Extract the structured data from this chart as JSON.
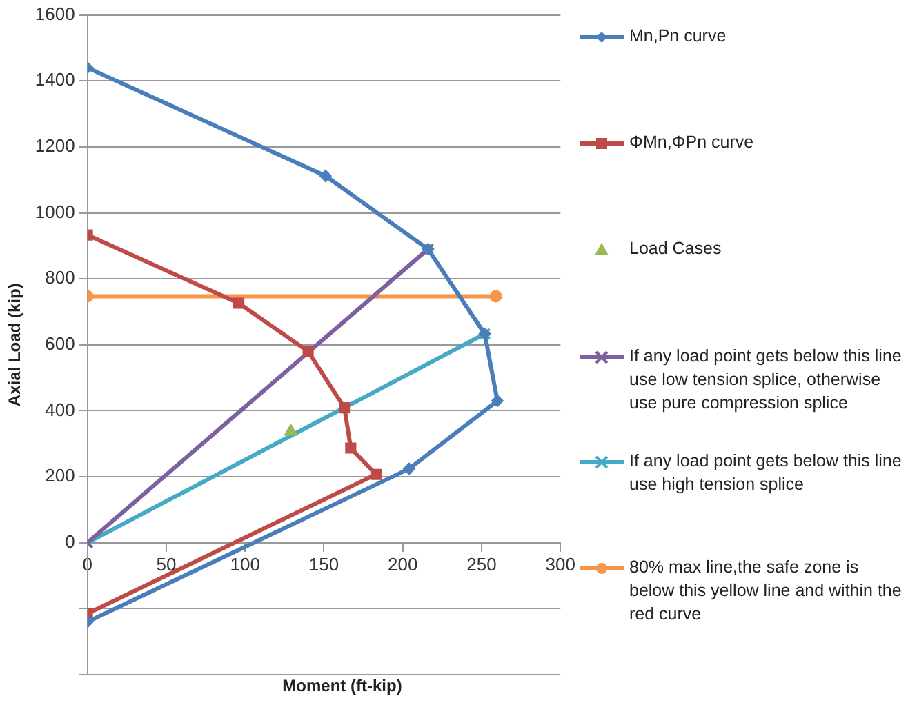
{
  "chart_data": {
    "type": "line",
    "xlabel": "Moment (ft-kip)",
    "ylabel": "Axial Load (kip)",
    "xlim": [
      0,
      300
    ],
    "xticks": [
      0,
      50,
      100,
      150,
      200,
      250,
      300
    ],
    "ylim": [
      -400,
      1600
    ],
    "yticks": [
      {
        "value": -400,
        "label": null
      },
      {
        "value": -200,
        "label": null
      },
      0,
      200,
      400,
      600,
      800,
      1000,
      1200,
      1400,
      1600
    ],
    "grid": "y",
    "legend": "right",
    "series": [
      {
        "name": "Mn,Pn curve",
        "marker": "diamond",
        "color": "#4a7ebb",
        "x": [
          0,
          151,
          216,
          252,
          260,
          204,
          0
        ],
        "values": [
          1440,
          1112,
          890,
          633,
          430,
          224,
          -240
        ]
      },
      {
        "name": "ΦMn,ΦPn curve",
        "marker": "square",
        "color": "#be4b48",
        "x": [
          0,
          96,
          140,
          163,
          167,
          183,
          0
        ],
        "values": [
          933,
          726,
          580,
          409,
          287,
          207,
          -215
        ]
      },
      {
        "name": "Load Cases",
        "type": "scatter",
        "marker": "triangle",
        "color": "#98b954",
        "x": [
          129
        ],
        "values": [
          337
        ]
      },
      {
        "name": "If any load point gets below this line use low tension splice, otherwise use pure compression splice",
        "marker": "cross",
        "color": "#7d60a0",
        "x": [
          0,
          216
        ],
        "values": [
          0,
          890
        ]
      },
      {
        "name": "If any load point gets below this line use high tension splice",
        "marker": "cross",
        "color": "#46aac5",
        "x": [
          0,
          252
        ],
        "values": [
          0,
          633
        ]
      },
      {
        "name": "80% max line,the safe zone is below this yellow line and within the red curve",
        "marker": "circle",
        "color": "#f79646",
        "x": [
          0,
          259
        ],
        "values": [
          747,
          747
        ]
      }
    ]
  }
}
